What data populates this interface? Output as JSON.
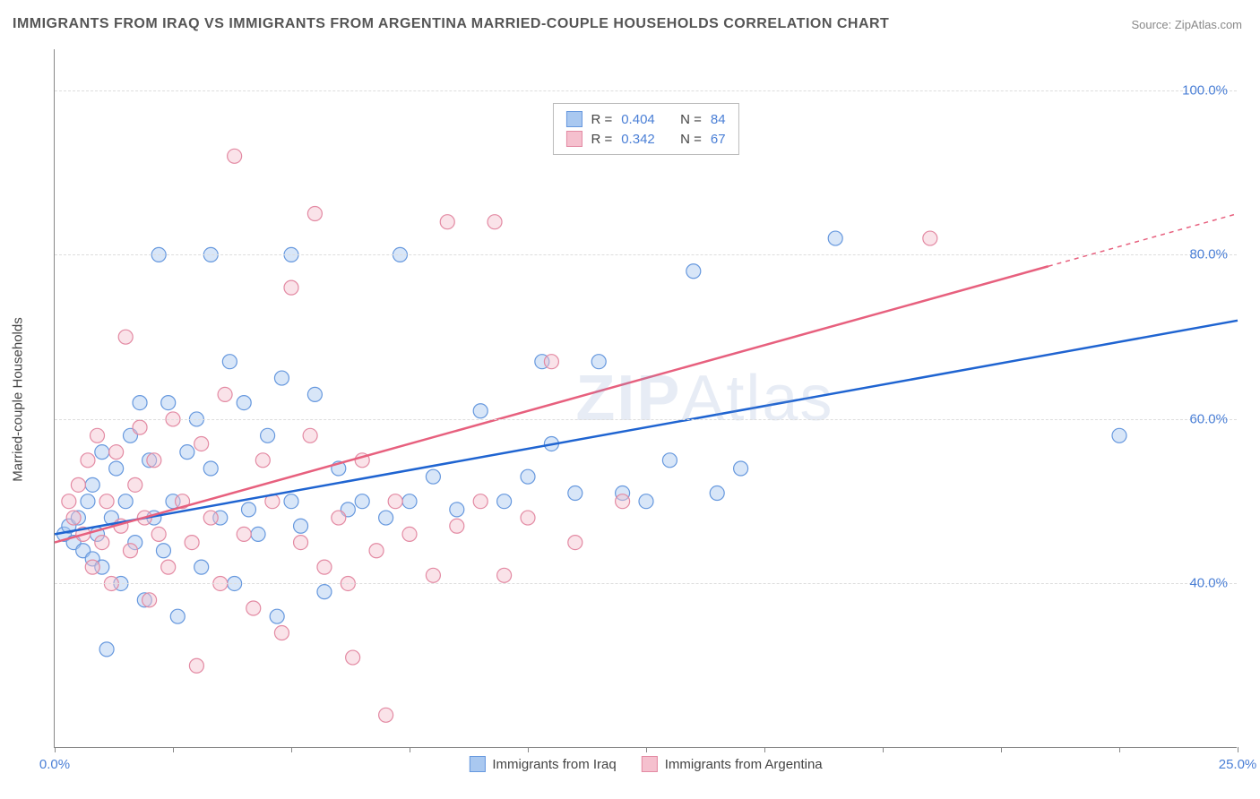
{
  "title": "IMMIGRANTS FROM IRAQ VS IMMIGRANTS FROM ARGENTINA MARRIED-COUPLE HOUSEHOLDS CORRELATION CHART",
  "source": "Source: ZipAtlas.com",
  "watermark": "ZIPAtlas",
  "ylabel": "Married-couple Households",
  "chart": {
    "type": "scatter",
    "xlim": [
      0,
      25
    ],
    "ylim": [
      20,
      105
    ],
    "xtick_positions": [
      0,
      2.5,
      5,
      7.5,
      10,
      12.5,
      15,
      17.5,
      20,
      22.5,
      25
    ],
    "xtick_labels": {
      "0": "0.0%",
      "25": "25.0%"
    },
    "ytick_positions": [
      40,
      60,
      80,
      100
    ],
    "ytick_labels": [
      "40.0%",
      "60.0%",
      "80.0%",
      "100.0%"
    ],
    "grid_y": [
      40,
      60,
      80,
      100
    ],
    "background_color": "#ffffff",
    "grid_color": "#dddddd",
    "axis_color": "#888888",
    "tick_label_color": "#4a7fd6",
    "marker_radius": 8,
    "line_width": 2.5
  },
  "series": [
    {
      "name": "Immigrants from Iraq",
      "color_fill": "#a9c8f0",
      "color_stroke": "#6698de",
      "color_line": "#1f64d1",
      "R": "0.404",
      "N": "84",
      "trend": {
        "x1": 0,
        "y1": 46,
        "x2": 25,
        "y2": 72
      },
      "trend_dashed_from": null,
      "points": [
        [
          0.2,
          46
        ],
        [
          0.3,
          47
        ],
        [
          0.4,
          45
        ],
        [
          0.5,
          48
        ],
        [
          0.6,
          44
        ],
        [
          0.7,
          50
        ],
        [
          0.8,
          43
        ],
        [
          0.8,
          52
        ],
        [
          0.9,
          46
        ],
        [
          1.0,
          56
        ],
        [
          1.0,
          42
        ],
        [
          1.1,
          32
        ],
        [
          1.2,
          48
        ],
        [
          1.3,
          54
        ],
        [
          1.4,
          40
        ],
        [
          1.5,
          50
        ],
        [
          1.6,
          58
        ],
        [
          1.7,
          45
        ],
        [
          1.8,
          62
        ],
        [
          1.9,
          38
        ],
        [
          2.0,
          55
        ],
        [
          2.1,
          48
        ],
        [
          2.2,
          80
        ],
        [
          2.3,
          44
        ],
        [
          2.4,
          62
        ],
        [
          2.5,
          50
        ],
        [
          2.6,
          36
        ],
        [
          2.8,
          56
        ],
        [
          3.0,
          60
        ],
        [
          3.1,
          42
        ],
        [
          3.3,
          54
        ],
        [
          3.3,
          80
        ],
        [
          3.5,
          48
        ],
        [
          3.7,
          67
        ],
        [
          3.8,
          40
        ],
        [
          4.0,
          62
        ],
        [
          4.1,
          49
        ],
        [
          4.3,
          46
        ],
        [
          4.5,
          58
        ],
        [
          4.7,
          36
        ],
        [
          4.8,
          65
        ],
        [
          5.0,
          50
        ],
        [
          5.0,
          80
        ],
        [
          5.2,
          47
        ],
        [
          5.5,
          63
        ],
        [
          5.7,
          39
        ],
        [
          6.0,
          54
        ],
        [
          6.2,
          49
        ],
        [
          6.5,
          50
        ],
        [
          7.0,
          48
        ],
        [
          7.3,
          80
        ],
        [
          7.5,
          50
        ],
        [
          8.0,
          53
        ],
        [
          8.5,
          49
        ],
        [
          9.0,
          61
        ],
        [
          9.5,
          50
        ],
        [
          10.0,
          53
        ],
        [
          10.3,
          67
        ],
        [
          10.5,
          57
        ],
        [
          11.0,
          51
        ],
        [
          11.5,
          67
        ],
        [
          12.0,
          51
        ],
        [
          12.5,
          50
        ],
        [
          13.0,
          55
        ],
        [
          13.5,
          78
        ],
        [
          14.0,
          51
        ],
        [
          14.5,
          54
        ],
        [
          16.5,
          82
        ],
        [
          22.5,
          58
        ]
      ]
    },
    {
      "name": "Immigrants from Argentina",
      "color_fill": "#f5c0ce",
      "color_stroke": "#e38aa3",
      "color_line": "#e7607e",
      "R": "0.342",
      "N": "67",
      "trend": {
        "x1": 0,
        "y1": 45,
        "x2": 25,
        "y2": 85
      },
      "trend_dashed_from": 21,
      "points": [
        [
          0.3,
          50
        ],
        [
          0.4,
          48
        ],
        [
          0.5,
          52
        ],
        [
          0.6,
          46
        ],
        [
          0.7,
          55
        ],
        [
          0.8,
          42
        ],
        [
          0.9,
          58
        ],
        [
          1.0,
          45
        ],
        [
          1.1,
          50
        ],
        [
          1.2,
          40
        ],
        [
          1.3,
          56
        ],
        [
          1.4,
          47
        ],
        [
          1.5,
          70
        ],
        [
          1.6,
          44
        ],
        [
          1.7,
          52
        ],
        [
          1.8,
          59
        ],
        [
          1.9,
          48
        ],
        [
          2.0,
          38
        ],
        [
          2.1,
          55
        ],
        [
          2.2,
          46
        ],
        [
          2.4,
          42
        ],
        [
          2.5,
          60
        ],
        [
          2.7,
          50
        ],
        [
          2.9,
          45
        ],
        [
          3.0,
          30
        ],
        [
          3.1,
          57
        ],
        [
          3.3,
          48
        ],
        [
          3.5,
          40
        ],
        [
          3.6,
          63
        ],
        [
          3.8,
          92
        ],
        [
          4.0,
          46
        ],
        [
          4.2,
          37
        ],
        [
          4.4,
          55
        ],
        [
          4.6,
          50
        ],
        [
          4.8,
          34
        ],
        [
          5.0,
          76
        ],
        [
          5.2,
          45
        ],
        [
          5.4,
          58
        ],
        [
          5.5,
          85
        ],
        [
          5.7,
          42
        ],
        [
          6.0,
          48
        ],
        [
          6.2,
          40
        ],
        [
          6.3,
          31
        ],
        [
          6.5,
          55
        ],
        [
          6.8,
          44
        ],
        [
          7.0,
          24
        ],
        [
          7.2,
          50
        ],
        [
          7.5,
          46
        ],
        [
          8.0,
          41
        ],
        [
          8.3,
          84
        ],
        [
          8.5,
          47
        ],
        [
          9.0,
          50
        ],
        [
          9.3,
          84
        ],
        [
          9.5,
          41
        ],
        [
          10.0,
          48
        ],
        [
          10.5,
          67
        ],
        [
          11.0,
          45
        ],
        [
          12.0,
          50
        ],
        [
          18.5,
          82
        ]
      ]
    }
  ],
  "legend": {
    "items": [
      "Immigrants from Iraq",
      "Immigrants from Argentina"
    ]
  },
  "stats_labels": {
    "R": "R =",
    "N": "N ="
  }
}
